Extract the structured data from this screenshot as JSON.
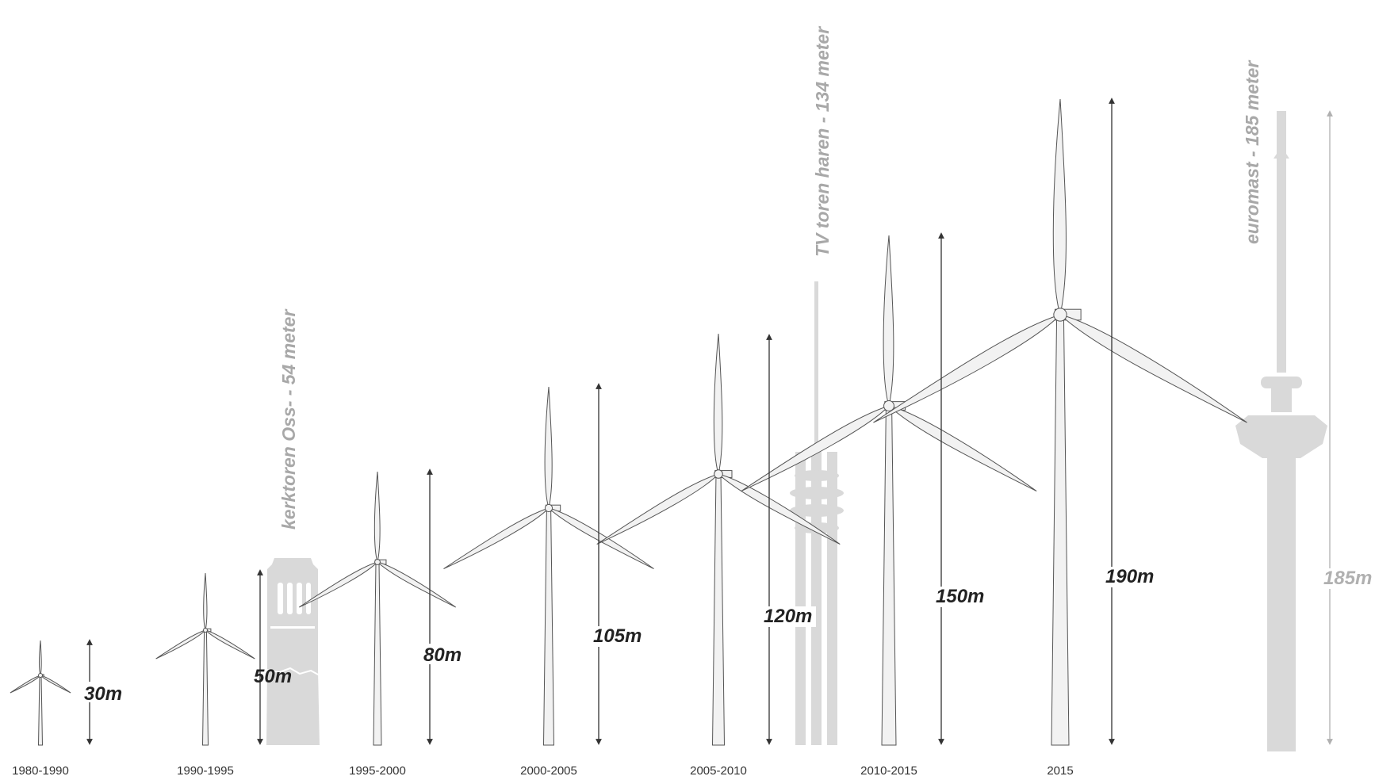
{
  "turbines": [
    {
      "period": "1980-1990",
      "height_label": "30m"
    },
    {
      "period": "1990-1995",
      "height_label": "50m"
    },
    {
      "period": "1995-2000",
      "height_label": "80m"
    },
    {
      "period": "2000-2005",
      "height_label": "105m"
    },
    {
      "period": "2005-2010",
      "height_label": "120m"
    },
    {
      "period": "2010-2015",
      "height_label": "150m"
    },
    {
      "period": "2015",
      "height_label": "190m"
    }
  ],
  "landmarks": [
    {
      "name": "kerktoren Oss- - 54 meter"
    },
    {
      "name": "TV toren haren - 134 meter"
    },
    {
      "name": "euromast - 185 meter",
      "height_label": "185m"
    }
  ],
  "colors": {
    "turbine_fill": "#f2f2f2",
    "turbine_stroke": "#555555",
    "landmark_fill": "#d9d9d9",
    "landmark_text": "#a8a8a8",
    "arrow": "#333333"
  }
}
